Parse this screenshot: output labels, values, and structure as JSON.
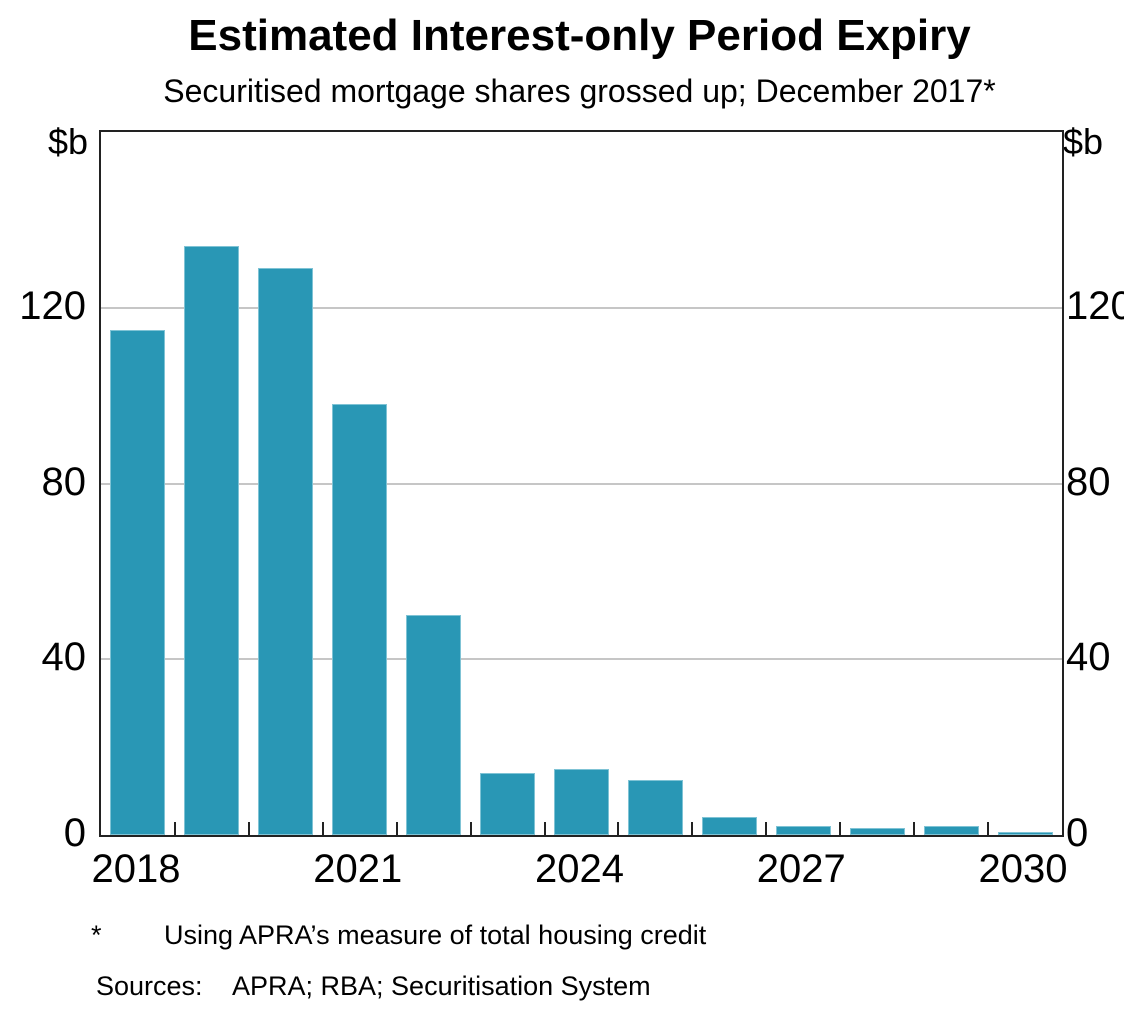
{
  "title": "Estimated Interest-only Period Expiry",
  "subtitle": "Securitised mortgage shares grossed up; December 2017*",
  "y_axis": {
    "unit_left": "$b",
    "unit_right": "$b",
    "tick_values": [
      0,
      40,
      80,
      120
    ],
    "max": 160
  },
  "x_axis": {
    "labels": [
      {
        "text": "2018",
        "slot": 0
      },
      {
        "text": "2021",
        "slot": 3
      },
      {
        "text": "2024",
        "slot": 6
      },
      {
        "text": "2027",
        "slot": 9
      },
      {
        "text": "2030",
        "slot": 12
      }
    ]
  },
  "footnotes": {
    "marker": "*",
    "note": "Using APRA’s measure of total housing credit",
    "sources_label": "Sources:",
    "sources": "APRA; RBA; Securitisation System"
  },
  "colors": {
    "bar_fill": "#2997b5",
    "bar_edge": "#7fc3d5",
    "gridline": "#c6c6c6",
    "axis": "#222222",
    "text": "#000000"
  },
  "chart_data": {
    "type": "bar",
    "categories": [
      2018,
      2019,
      2020,
      2021,
      2022,
      2023,
      2024,
      2025,
      2026,
      2027,
      2028,
      2029,
      2030
    ],
    "values": [
      115,
      134,
      129,
      98,
      50,
      14,
      15,
      12.5,
      4,
      2,
      1.5,
      2,
      0.7
    ],
    "title": "Estimated Interest-only Period Expiry",
    "subtitle": "Securitised mortgage shares grossed up; December 2017*",
    "xlabel": "",
    "ylabel": "$b",
    "ylim": [
      0,
      160
    ],
    "yticks": [
      0,
      40,
      80,
      120
    ],
    "xtick_labels_shown": [
      "2018",
      "2021",
      "2024",
      "2027",
      "2030"
    ],
    "grid": true,
    "legend": "none"
  }
}
